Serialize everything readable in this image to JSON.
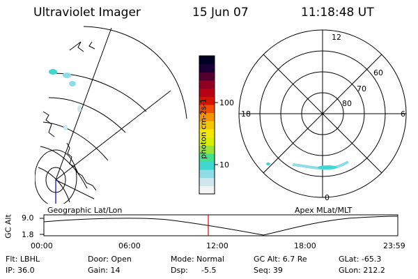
{
  "header": {
    "instrument": "Ultraviolet Imager",
    "date": "15 Jun 07",
    "time": "11:18:48 UT"
  },
  "colorbar": {
    "label": "photon cm-2s-1",
    "ticks": [
      "100",
      "10"
    ],
    "colors": [
      "#f4f4f4",
      "#d0e8ec",
      "#8fdce6",
      "#3ed8d0",
      "#47e08a",
      "#9ae43a",
      "#d8f000",
      "#f4e800",
      "#f4c800",
      "#f49400",
      "#ec5000",
      "#d41400",
      "#b80014",
      "#900024",
      "#520030",
      "#1a0036",
      "#000024"
    ]
  },
  "geo_map": {
    "label": "Geographic Lat/Lon",
    "line_color": "#000000",
    "meridian_color": "#0000c0"
  },
  "polar": {
    "label": "Apex MLat/MLT",
    "mlt_labels": {
      "top": "12",
      "bottom": "0",
      "left": "18",
      "right": "6"
    },
    "mlat_labels": [
      "60",
      "70",
      "80"
    ]
  },
  "gc_alt": {
    "axis_label": "GC Alt",
    "ticks": [
      "9.0",
      "1.8"
    ],
    "marker_color": "#e00000",
    "time_labels": [
      "00:00",
      "06:00",
      "12:00",
      "18:00",
      "23:59"
    ]
  },
  "info": {
    "flt": "Flt: LBHL",
    "ip": "IP: 36.0",
    "door": "Door: Open",
    "gain": "Gain: 14",
    "mode": "Mode: Normal",
    "dsp": "Dsp:",
    "dsp_value": "-5.5",
    "gc_alt": "GC Alt: 6.7 Re",
    "seq": "Seq: 39",
    "glat": "GLat: -65.3",
    "glon": "GLon: 212.2"
  }
}
